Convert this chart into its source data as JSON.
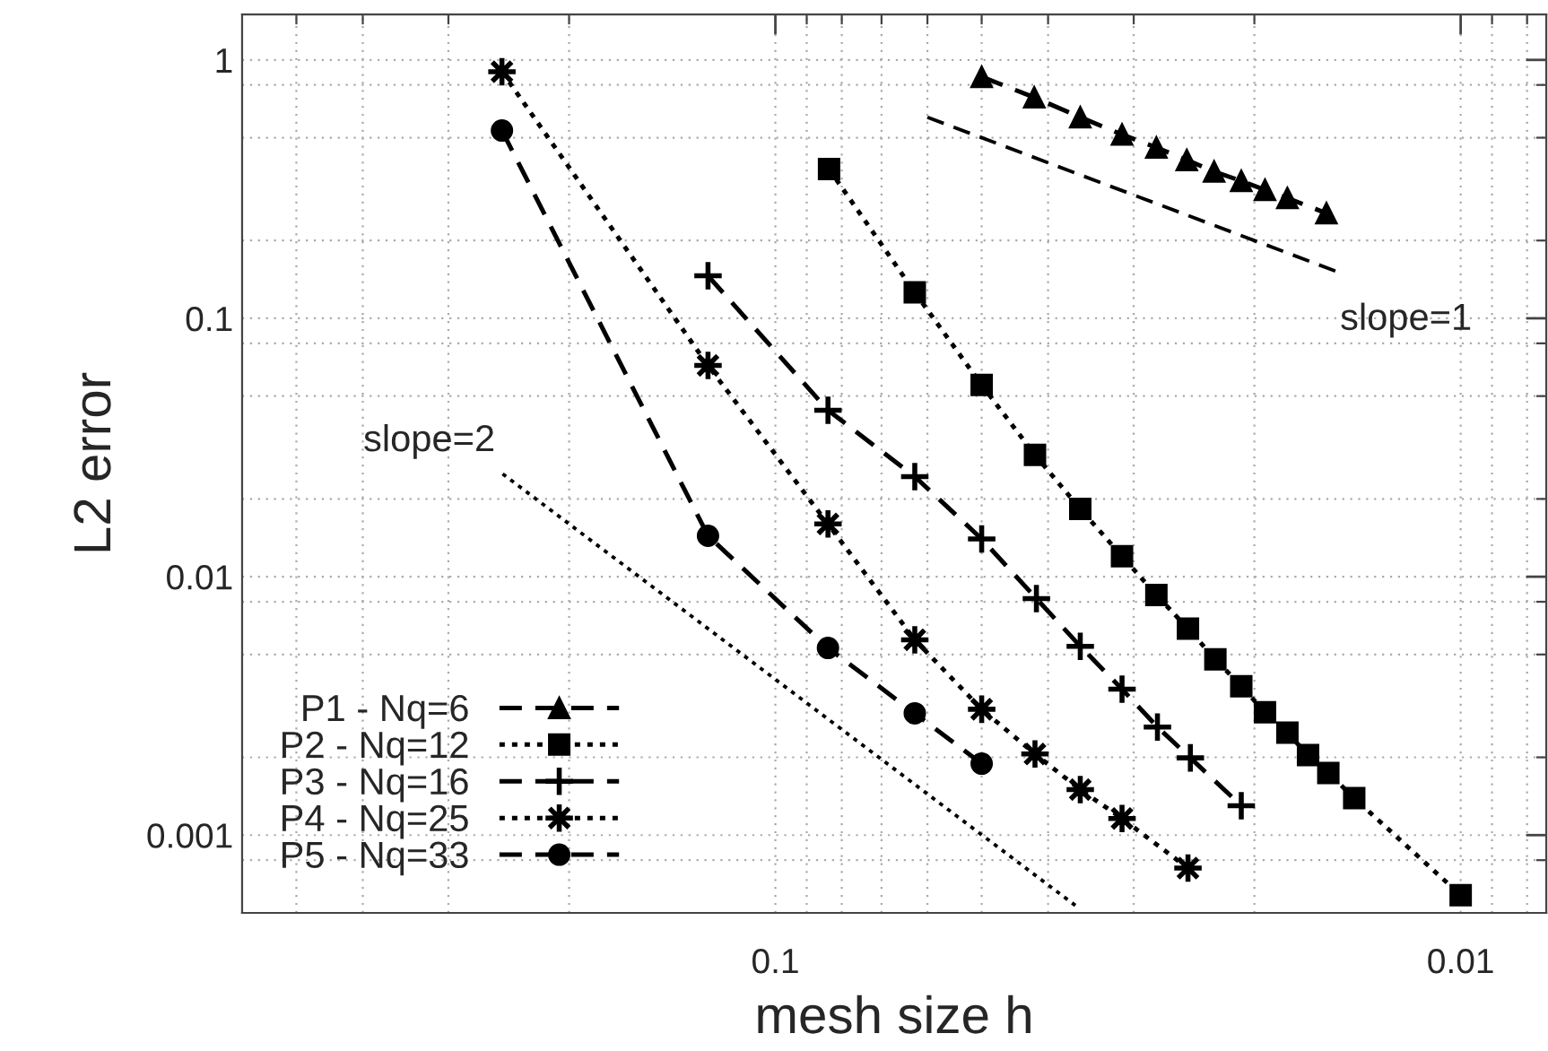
{
  "chart_data": {
    "type": "line",
    "xlabel": "mesh size h",
    "ylabel": "L2 error",
    "log": "xy",
    "grid": true,
    "legend": "bottom left",
    "xlim": [
      0.6,
      0.0075
    ],
    "ylim": [
      0.0005,
      1.5
    ],
    "xticks": [
      {
        "value": 0.5,
        "label": null
      },
      {
        "value": 0.4,
        "label": null
      },
      {
        "value": 0.3,
        "label": null
      },
      {
        "value": 0.2,
        "label": null
      },
      0.1,
      {
        "value": 0.09,
        "label": null
      },
      {
        "value": 0.08,
        "label": null
      },
      {
        "value": 0.07,
        "label": null
      },
      {
        "value": 0.06,
        "label": null
      },
      {
        "value": 0.05,
        "label": null
      },
      {
        "value": 0.04,
        "label": null
      },
      {
        "value": 0.03,
        "label": null
      },
      {
        "value": 0.02,
        "label": null
      },
      0.01,
      {
        "value": 0.009,
        "label": null
      },
      {
        "value": 0.008,
        "label": null
      }
    ],
    "yticks": [
      1,
      {
        "value": 0.8,
        "label": null
      },
      {
        "value": 0.5,
        "label": null
      },
      {
        "value": 0.2,
        "label": null
      },
      0.1,
      {
        "value": 0.08,
        "label": null
      },
      {
        "value": 0.05,
        "label": null
      },
      {
        "value": 0.02,
        "label": null
      },
      0.01,
      {
        "value": 0.008,
        "label": null
      },
      {
        "value": 0.005,
        "label": null
      },
      {
        "value": 0.002,
        "label": null
      },
      0.001,
      {
        "value": 0.0008,
        "label": null
      }
    ],
    "annotations": [
      {
        "text": "slope=1",
        "x": 0.015,
        "y": 0.15
      },
      {
        "text": "slope=2",
        "x": 0.25,
        "y": 0.025
      }
    ],
    "series": [
      {
        "name": "P1 - Nq=6",
        "color": "#000000",
        "marker": "triangle",
        "line_style": "dashed",
        "x": [
          0.05,
          0.0419,
          0.0359,
          0.0312,
          0.0278,
          0.0251,
          0.0229,
          0.0209,
          0.0193,
          0.0179,
          0.0157
        ],
        "values": [
          0.86,
          0.716,
          0.6,
          0.514,
          0.458,
          0.41,
          0.37,
          0.34,
          0.314,
          0.292,
          0.255
        ]
      },
      {
        "name": "P2 - Nq=12",
        "color": "#000000",
        "marker": "square",
        "line_style": "dotted",
        "x": [
          0.0835,
          0.0626,
          0.05,
          0.0418,
          0.0359,
          0.0312,
          0.0278,
          0.025,
          0.0228,
          0.0209,
          0.0193,
          0.0179,
          0.0167,
          0.0156,
          0.0143,
          0.01
        ],
        "values": [
          0.378,
          0.126,
          0.0552,
          0.0296,
          0.0183,
          0.012,
          0.0085,
          0.0063,
          0.00479,
          0.00377,
          0.00299,
          0.00249,
          0.00204,
          0.00174,
          0.00139,
          0.000586
        ]
      },
      {
        "name": "P3 - Nq=16",
        "color": "#000000",
        "marker": "cross",
        "line_style": "dashed",
        "x": [
          0.1254,
          0.0838,
          0.0626,
          0.05,
          0.0416,
          0.0359,
          0.0312,
          0.0277,
          0.0248,
          0.0209
        ],
        "values": [
          0.146,
          0.0441,
          0.0244,
          0.014,
          0.00823,
          0.00538,
          0.00367,
          0.00262,
          0.00199,
          0.0013
        ]
      },
      {
        "name": "P4 - Nq=25",
        "color": "#000000",
        "marker": "star",
        "line_style": "dotted",
        "x": [
          0.2506,
          0.1254,
          0.0838,
          0.0626,
          0.05,
          0.0418,
          0.0359,
          0.0312,
          0.025
        ],
        "values": [
          0.9,
          0.0657,
          0.016,
          0.0057,
          0.00307,
          0.00206,
          0.0015,
          0.00116,
          0.000745
        ]
      },
      {
        "name": "P5 - Nq=33",
        "color": "#000000",
        "marker": "circle",
        "line_style": "dashed",
        "x": [
          0.2506,
          0.1254,
          0.0838,
          0.0626,
          0.05
        ],
        "values": [
          0.533,
          0.0144,
          0.0053,
          0.00296,
          0.00189
        ]
      },
      {
        "type": "line",
        "color": "#000000",
        "marker": "none",
        "line_style": "dashed",
        "x": [
          0.06,
          0.015
        ],
        "values": [
          0.6,
          0.15
        ]
      },
      {
        "type": "line",
        "color": "#000000",
        "marker": "none",
        "line_style": "dotted",
        "x": [
          0.25,
          0.036
        ],
        "values": [
          0.025,
          0.00052
        ]
      }
    ]
  }
}
